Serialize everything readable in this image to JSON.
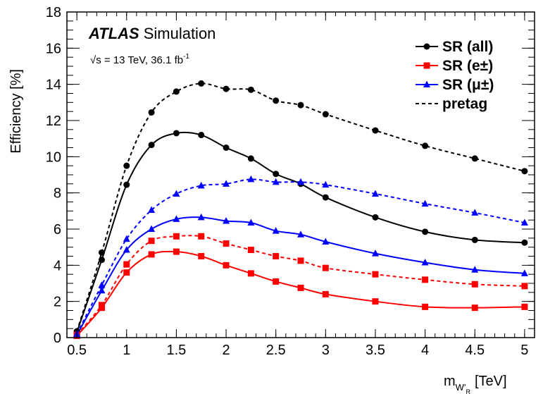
{
  "chart_data": {
    "type": "line",
    "xlabel": "m",
    "xlabel_sub": "W'",
    "xlabel_subsub": "R",
    "xlabel_unit": "[TeV]",
    "ylabel": "Efficiency [%]",
    "xlim": [
      0.4,
      5.1
    ],
    "ylim": [
      0,
      18
    ],
    "x_ticks": [
      "0.5",
      "1",
      "1.5",
      "2",
      "2.5",
      "3",
      "3.5",
      "4",
      "4.5",
      "5"
    ],
    "y_ticks": [
      "0",
      "2",
      "4",
      "6",
      "8",
      "10",
      "12",
      "14",
      "16",
      "18"
    ],
    "experiment": "ATLAS",
    "experiment_label": "Simulation",
    "energy_label": "√s = 13 TeV, 36.1 fb",
    "energy_sup": "-1",
    "legend_position": "top-right",
    "x": [
      0.5,
      0.75,
      1.0,
      1.25,
      1.5,
      1.75,
      2.0,
      2.25,
      2.5,
      2.75,
      3.0,
      3.5,
      4.0,
      4.5,
      5.0
    ],
    "series": [
      {
        "name": "SR (all)",
        "channel": "all",
        "dashed": false,
        "color": "#000000",
        "marker": "circle",
        "values": [
          0.3,
          4.3,
          8.45,
          10.65,
          11.3,
          11.2,
          10.5,
          9.9,
          9.05,
          8.5,
          7.75,
          6.65,
          5.85,
          5.4,
          5.25
        ]
      },
      {
        "name": "SR (e±)",
        "channel": "e",
        "dashed": false,
        "color": "#ff0000",
        "marker": "square",
        "values": [
          0.1,
          1.65,
          3.6,
          4.6,
          4.75,
          4.5,
          4.0,
          3.55,
          3.1,
          2.75,
          2.4,
          2.0,
          1.7,
          1.65,
          1.7
        ]
      },
      {
        "name": "SR (μ±)",
        "channel": "mu",
        "dashed": false,
        "color": "#0000ff",
        "marker": "triangle",
        "values": [
          0.15,
          2.6,
          4.85,
          6.0,
          6.55,
          6.65,
          6.45,
          6.35,
          5.9,
          5.7,
          5.3,
          4.65,
          4.15,
          3.75,
          3.55
        ]
      },
      {
        "name": "",
        "channel": "all",
        "dashed": true,
        "color": "#000000",
        "marker": "circle",
        "values": [
          0.35,
          4.7,
          9.5,
          12.45,
          13.6,
          14.05,
          13.75,
          13.7,
          13.1,
          12.85,
          12.35,
          11.45,
          10.6,
          9.9,
          9.2
        ]
      },
      {
        "name": "",
        "channel": "e",
        "dashed": true,
        "color": "#ff0000",
        "marker": "square",
        "values": [
          0.15,
          1.8,
          4.05,
          5.35,
          5.6,
          5.6,
          5.2,
          4.85,
          4.5,
          4.25,
          3.85,
          3.5,
          3.2,
          2.95,
          2.85
        ]
      },
      {
        "name": "",
        "channel": "mu",
        "dashed": true,
        "color": "#0000ff",
        "marker": "triangle",
        "values": [
          0.2,
          2.9,
          5.45,
          7.05,
          7.95,
          8.4,
          8.5,
          8.75,
          8.6,
          8.6,
          8.45,
          7.95,
          7.4,
          6.9,
          6.35
        ]
      }
    ],
    "legend": [
      {
        "label": "SR (all)",
        "color": "#000000",
        "marker": "circle",
        "dashed": false
      },
      {
        "label": "SR (e±)",
        "color": "#ff0000",
        "marker": "square",
        "dashed": false
      },
      {
        "label": "SR (μ±)",
        "color": "#0000ff",
        "marker": "triangle",
        "dashed": false
      },
      {
        "label": "pretag",
        "color": "#000000",
        "marker": "none",
        "dashed": true
      }
    ]
  }
}
